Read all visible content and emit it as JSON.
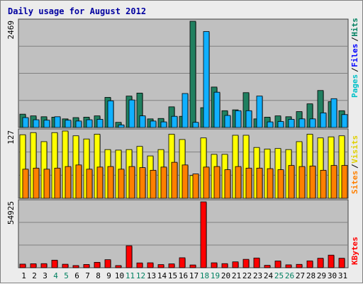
{
  "chart_data": {
    "type": "bar",
    "title": "Daily usage for August 2012",
    "categories": [
      "1",
      "2",
      "3",
      "4",
      "5",
      "6",
      "7",
      "8",
      "9",
      "10",
      "11",
      "12",
      "13",
      "14",
      "15",
      "16",
      "17",
      "18",
      "19",
      "20",
      "21",
      "22",
      "23",
      "24",
      "25",
      "26",
      "27",
      "28",
      "29",
      "30",
      "31"
    ],
    "weekend_days": [
      "4",
      "5",
      "11",
      "12",
      "18",
      "19",
      "25",
      "26"
    ],
    "grid": true,
    "panels": [
      {
        "id": "hits-files-pages",
        "max_label": "2469",
        "ylim": [
          0,
          2469
        ],
        "right_labels": [
          {
            "text": "Pages",
            "color": "#00c0c8"
          },
          {
            "text": "Files",
            "color": "#0000ff"
          },
          {
            "text": "Hits",
            "color": "#008060"
          }
        ],
        "series": [
          {
            "name": "Hits",
            "color": "#208060",
            "values": [
              310,
              270,
              250,
              240,
              200,
              230,
              240,
              270,
              700,
              120,
              730,
              800,
              200,
              210,
              480,
              260,
              2469,
              460,
              940,
              390,
              410,
              810,
              200,
              240,
              270,
              250,
              370,
              550,
              860,
              600,
              390
            ]
          },
          {
            "name": "Files",
            "color": "#10b0ff",
            "values": [
              230,
              180,
              170,
              250,
              170,
              150,
              180,
              190,
              620,
              60,
              640,
              270,
              150,
              130,
              260,
              790,
              120,
              2230,
              820,
              280,
              390,
              390,
              730,
              130,
              140,
              190,
              200,
              200,
              340,
              670,
              300
            ]
          }
        ]
      },
      {
        "id": "visits-sites",
        "max_label": "127",
        "ylim": [
          0,
          127
        ],
        "right_labels": [
          {
            "text": "Sites",
            "color": "#ff8000"
          },
          {
            "text": "Visits",
            "color": "#e0d000"
          }
        ],
        "series": [
          {
            "name": "Visits",
            "color": "#ffff00",
            "values": [
              120,
              124,
              107,
              124,
              127,
              118,
              112,
              121,
              92,
              91,
              92,
              98,
              80,
              92,
              121,
              111,
              43,
              114,
              83,
              83,
              119,
              119,
              96,
              93,
              94,
              92,
              107,
              121,
              114,
              116,
              118
            ]
          },
          {
            "name": "Sites",
            "color": "#ff8000",
            "values": [
              55,
              57,
              55,
              57,
              60,
              63,
              55,
              59,
              60,
              55,
              60,
              58,
              53,
              59,
              68,
              63,
              46,
              59,
              60,
              54,
              60,
              57,
              57,
              56,
              54,
              62,
              60,
              61,
              53,
              62,
              62
            ]
          }
        ]
      },
      {
        "id": "kbytes",
        "max_label": "54925",
        "ylim": [
          0,
          54925
        ],
        "right_labels": [
          {
            "text": "KBytes",
            "color": "#ff0000"
          }
        ],
        "series": [
          {
            "name": "KBytes",
            "color": "#ff0000",
            "values": [
              3000,
              3300,
              3400,
              6300,
              2900,
              1800,
              2700,
              4500,
              6700,
              1800,
              18300,
              4000,
              4100,
              2600,
              3200,
              8300,
              2300,
              54925,
              4100,
              3400,
              4900,
              7000,
              8100,
              2000,
              5600,
              2400,
              2800,
              5700,
              7900,
              10500,
              7900
            ]
          }
        ]
      }
    ]
  }
}
